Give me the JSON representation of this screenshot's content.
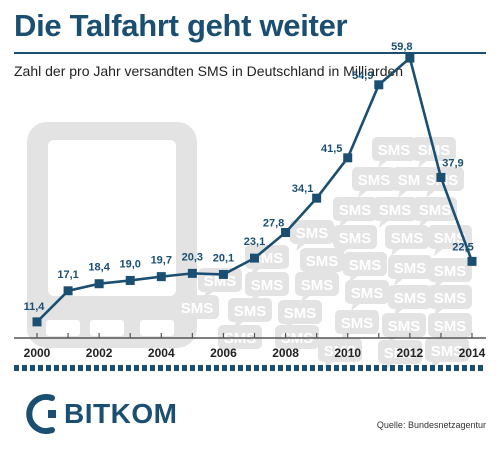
{
  "chart_data": {
    "type": "line",
    "title": "Die Talfahrt geht weiter",
    "subtitle": "Zahl der pro Jahr versandten SMS in Deutschland in Milliarden",
    "xlabel": "",
    "ylabel": "",
    "x": [
      2000,
      2001,
      2002,
      2003,
      2004,
      2005,
      2006,
      2007,
      2008,
      2009,
      2010,
      2011,
      2012,
      2013,
      2014
    ],
    "values": [
      11.4,
      17.1,
      18.4,
      19.0,
      19.7,
      20.3,
      20.1,
      23.1,
      27.8,
      34.1,
      41.5,
      54.9,
      59.8,
      37.9,
      22.5
    ],
    "value_labels": [
      "11,4",
      "17,1",
      "18,4",
      "19,0",
      "19,7",
      "20,3",
      "20,1",
      "23,1",
      "27,8",
      "34,1",
      "41,5",
      "54,9",
      "59,8",
      "37,9",
      "22,5"
    ],
    "x_tick_labels": [
      "2000",
      "2002",
      "2004",
      "2006",
      "2008",
      "2010",
      "2012",
      "2014"
    ],
    "ylim": [
      0,
      62
    ],
    "grid": false,
    "line_color": "#1b4f72",
    "background_icons": {
      "phone": "mobile-phone-icon",
      "bubble_label": "SMS",
      "bubble_color": "#e3e3e3"
    }
  },
  "footer": {
    "logo_text": "BITKOM",
    "source": "Quelle: Bundesnetzagentur"
  }
}
